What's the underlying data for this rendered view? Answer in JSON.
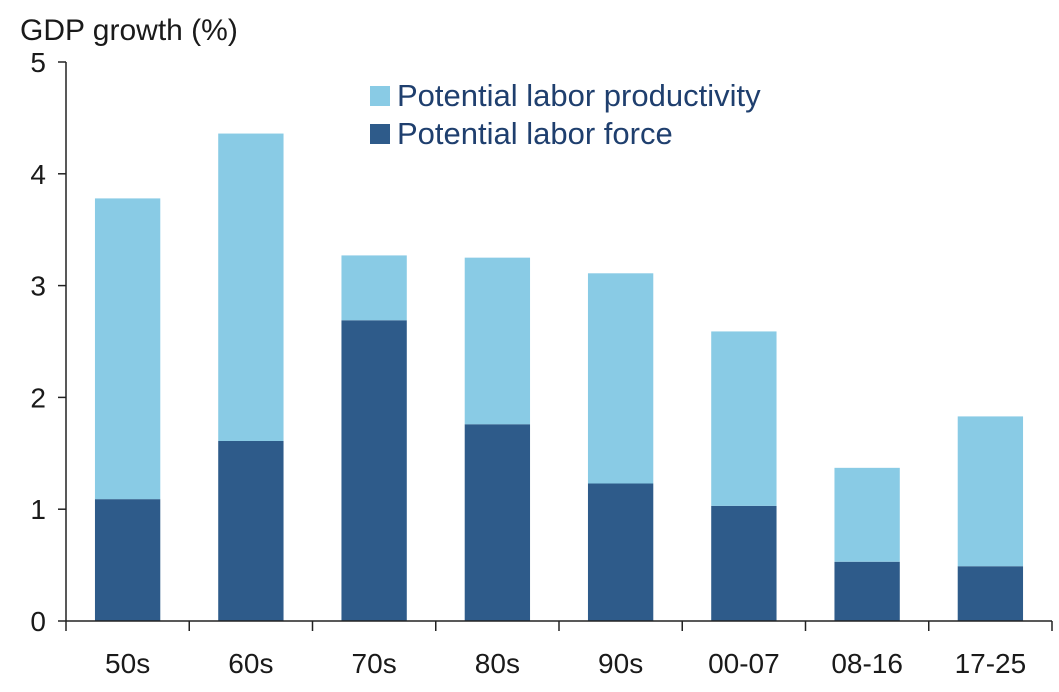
{
  "chart_data": {
    "type": "bar",
    "stacked": true,
    "ylabel": "GDP growth (%)",
    "xlabel": "",
    "ylim": [
      0,
      5
    ],
    "yticks": [
      0,
      1,
      2,
      3,
      4,
      5
    ],
    "grid": false,
    "legend_position": "top-center",
    "categories": [
      "50s",
      "60s",
      "70s",
      "80s",
      "90s",
      "00-07",
      "08-16",
      "17-25"
    ],
    "series": [
      {
        "name": "Potential labor force",
        "color": "#2e5b8a",
        "values": [
          1.09,
          1.61,
          2.69,
          1.76,
          1.23,
          1.03,
          0.53,
          0.49
        ]
      },
      {
        "name": "Potential labor productivity",
        "color": "#89cbe5",
        "values": [
          2.69,
          2.75,
          0.58,
          1.49,
          1.88,
          1.56,
          0.84,
          1.34
        ]
      }
    ],
    "legend": [
      {
        "name": "Potential labor productivity",
        "color": "#89cbe5"
      },
      {
        "name": "Potential labor force",
        "color": "#2e5b8a"
      }
    ]
  }
}
